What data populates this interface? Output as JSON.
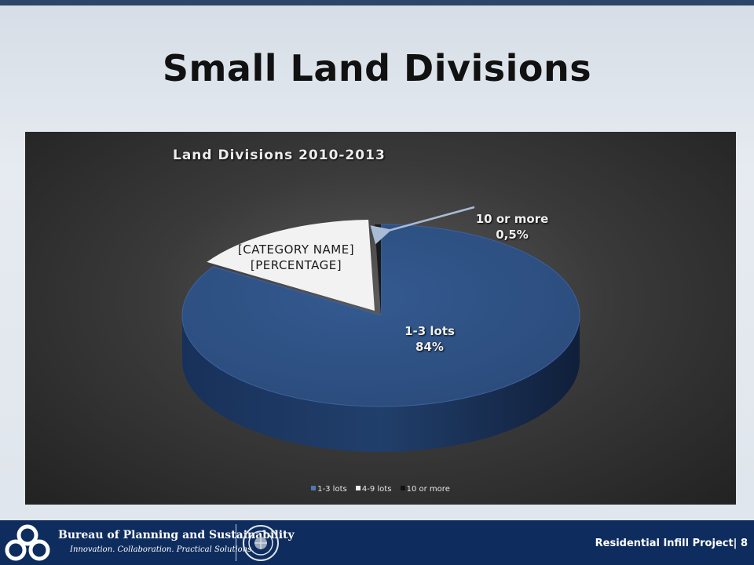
{
  "slide": {
    "title": "Small Land Divisions"
  },
  "chart_data": {
    "type": "pie",
    "title": "Land Divisions  2010-2013",
    "categories": [
      "1-3 lots",
      "4-9 lots",
      "10 or more"
    ],
    "values": [
      84,
      15.5,
      0.5
    ],
    "colors": [
      "#2b4d7e",
      "#f2f2f2",
      "#1a1a1a"
    ],
    "data_labels": [
      {
        "category": "1-3 lots",
        "value_text": "84%"
      },
      {
        "category": "[CATEGORY NAME]",
        "value_text": "[PERCENTAGE]"
      },
      {
        "category": "10 or more",
        "value_text": "0,5%"
      }
    ],
    "legend_position": "bottom"
  },
  "footer": {
    "org_name": "Bureau of Planning and Sustainability",
    "tagline": "Innovation. Collaboration. Practical Solutions.",
    "project": "Residential Infill Project| 8"
  },
  "colors": {
    "top_bar": "#2d4569",
    "footer_bg": "#0e2c5e",
    "pie_blue": "#2b4d7e"
  }
}
